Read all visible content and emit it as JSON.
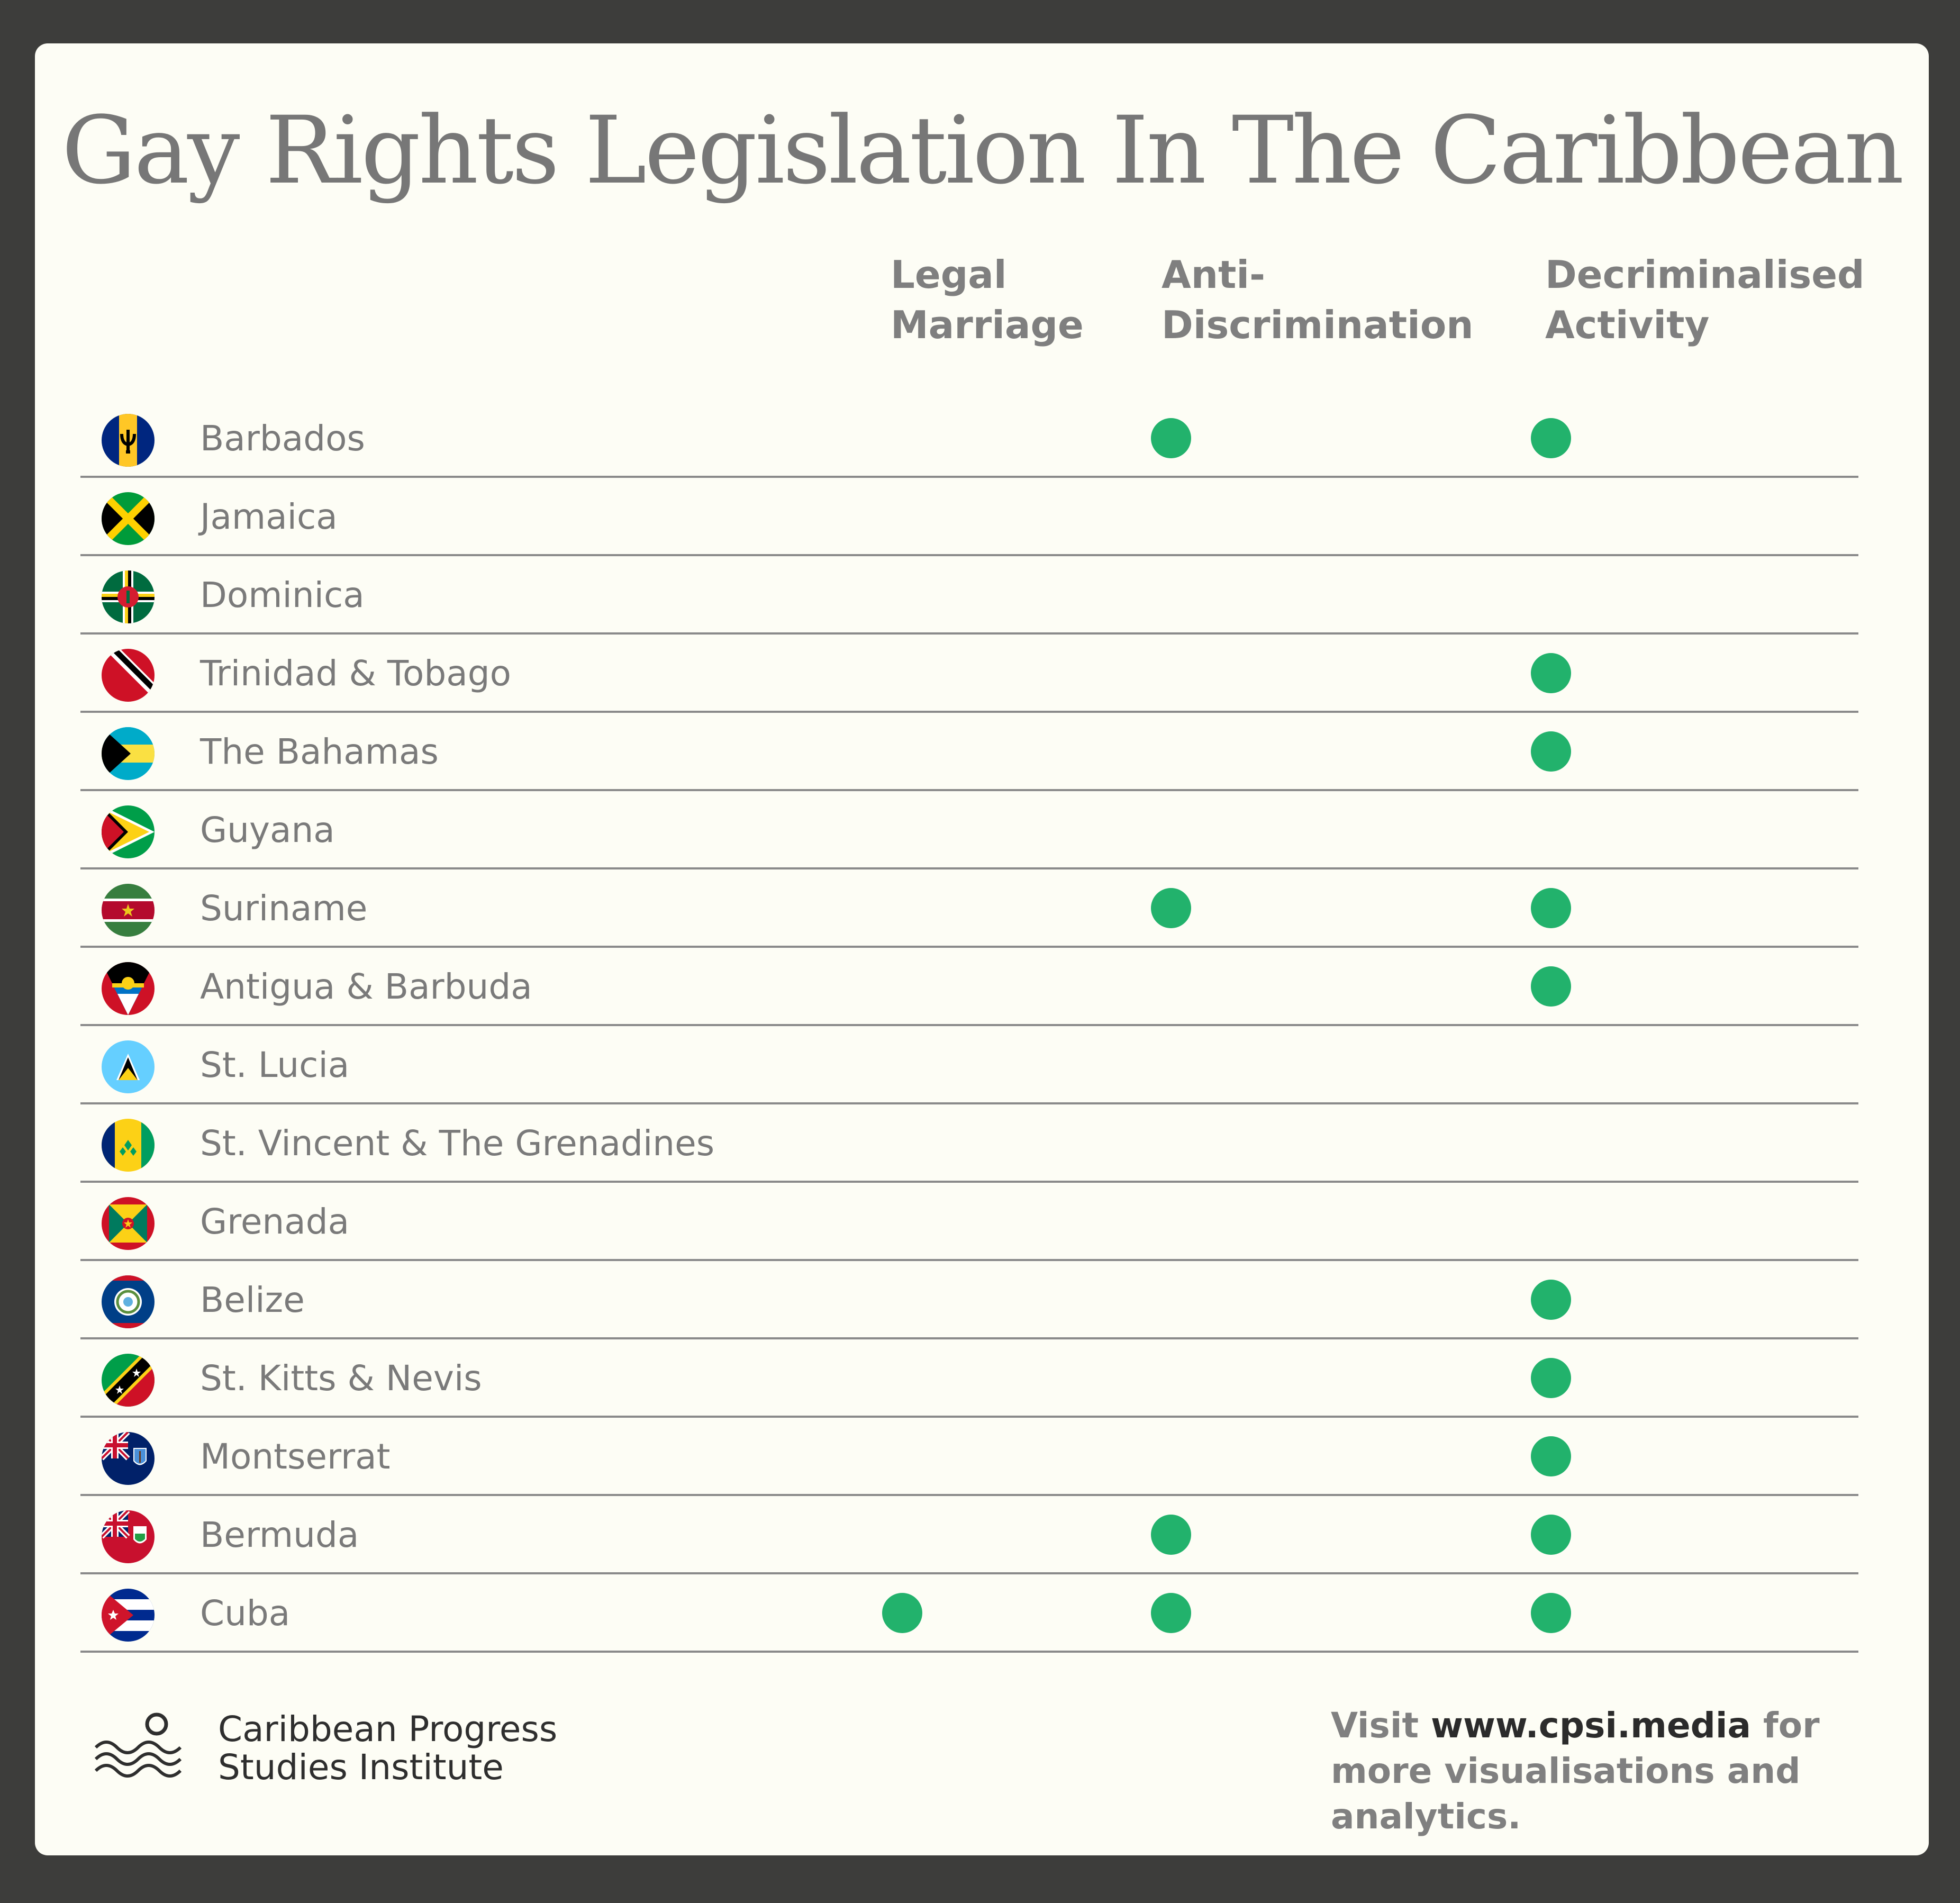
{
  "title": "Gay Rights Legislation In The Caribbean",
  "columns": [
    "Legal\nMarriage",
    "Anti-\nDiscrimination",
    "Decriminalised\nActivity"
  ],
  "colors": {
    "dot": "#22b26c",
    "background": "#fdfdf5",
    "frame": "#3d3d3b"
  },
  "rows": [
    {
      "country": "Barbados",
      "flag": "barbados-flag-icon",
      "legal_marriage": false,
      "anti_discrimination": true,
      "decriminalised": true
    },
    {
      "country": "Jamaica",
      "flag": "jamaica-flag-icon",
      "legal_marriage": false,
      "anti_discrimination": false,
      "decriminalised": false
    },
    {
      "country": "Dominica",
      "flag": "dominica-flag-icon",
      "legal_marriage": false,
      "anti_discrimination": false,
      "decriminalised": false
    },
    {
      "country": "Trinidad & Tobago",
      "flag": "trinidad-tobago-flag-icon",
      "legal_marriage": false,
      "anti_discrimination": false,
      "decriminalised": true
    },
    {
      "country": "The Bahamas",
      "flag": "bahamas-flag-icon",
      "legal_marriage": false,
      "anti_discrimination": false,
      "decriminalised": true
    },
    {
      "country": "Guyana",
      "flag": "guyana-flag-icon",
      "legal_marriage": false,
      "anti_discrimination": false,
      "decriminalised": false
    },
    {
      "country": "Suriname",
      "flag": "suriname-flag-icon",
      "legal_marriage": false,
      "anti_discrimination": true,
      "decriminalised": true
    },
    {
      "country": "Antigua & Barbuda",
      "flag": "antigua-barbuda-flag-icon",
      "legal_marriage": false,
      "anti_discrimination": false,
      "decriminalised": true
    },
    {
      "country": "St. Lucia",
      "flag": "st-lucia-flag-icon",
      "legal_marriage": false,
      "anti_discrimination": false,
      "decriminalised": false
    },
    {
      "country": "St. Vincent & The Grenadines",
      "flag": "st-vincent-flag-icon",
      "legal_marriage": false,
      "anti_discrimination": false,
      "decriminalised": false
    },
    {
      "country": "Grenada",
      "flag": "grenada-flag-icon",
      "legal_marriage": false,
      "anti_discrimination": false,
      "decriminalised": false
    },
    {
      "country": "Belize",
      "flag": "belize-flag-icon",
      "legal_marriage": false,
      "anti_discrimination": false,
      "decriminalised": true
    },
    {
      "country": "St. Kitts & Nevis",
      "flag": "st-kitts-nevis-flag-icon",
      "legal_marriage": false,
      "anti_discrimination": false,
      "decriminalised": true
    },
    {
      "country": "Montserrat",
      "flag": "montserrat-flag-icon",
      "legal_marriage": false,
      "anti_discrimination": false,
      "decriminalised": true
    },
    {
      "country": "Bermuda",
      "flag": "bermuda-flag-icon",
      "legal_marriage": false,
      "anti_discrimination": true,
      "decriminalised": true
    },
    {
      "country": "Cuba",
      "flag": "cuba-flag-icon",
      "legal_marriage": true,
      "anti_discrimination": true,
      "decriminalised": true
    }
  ],
  "footer": {
    "org_line1": "Caribbean Progress",
    "org_line2": "Studies Institute",
    "logo": "cpsi-waves-logo-icon",
    "cta_prefix": "Visit ",
    "cta_link": "www.cpsi.media",
    "cta_suffix": " for more visualisations and analytics."
  }
}
